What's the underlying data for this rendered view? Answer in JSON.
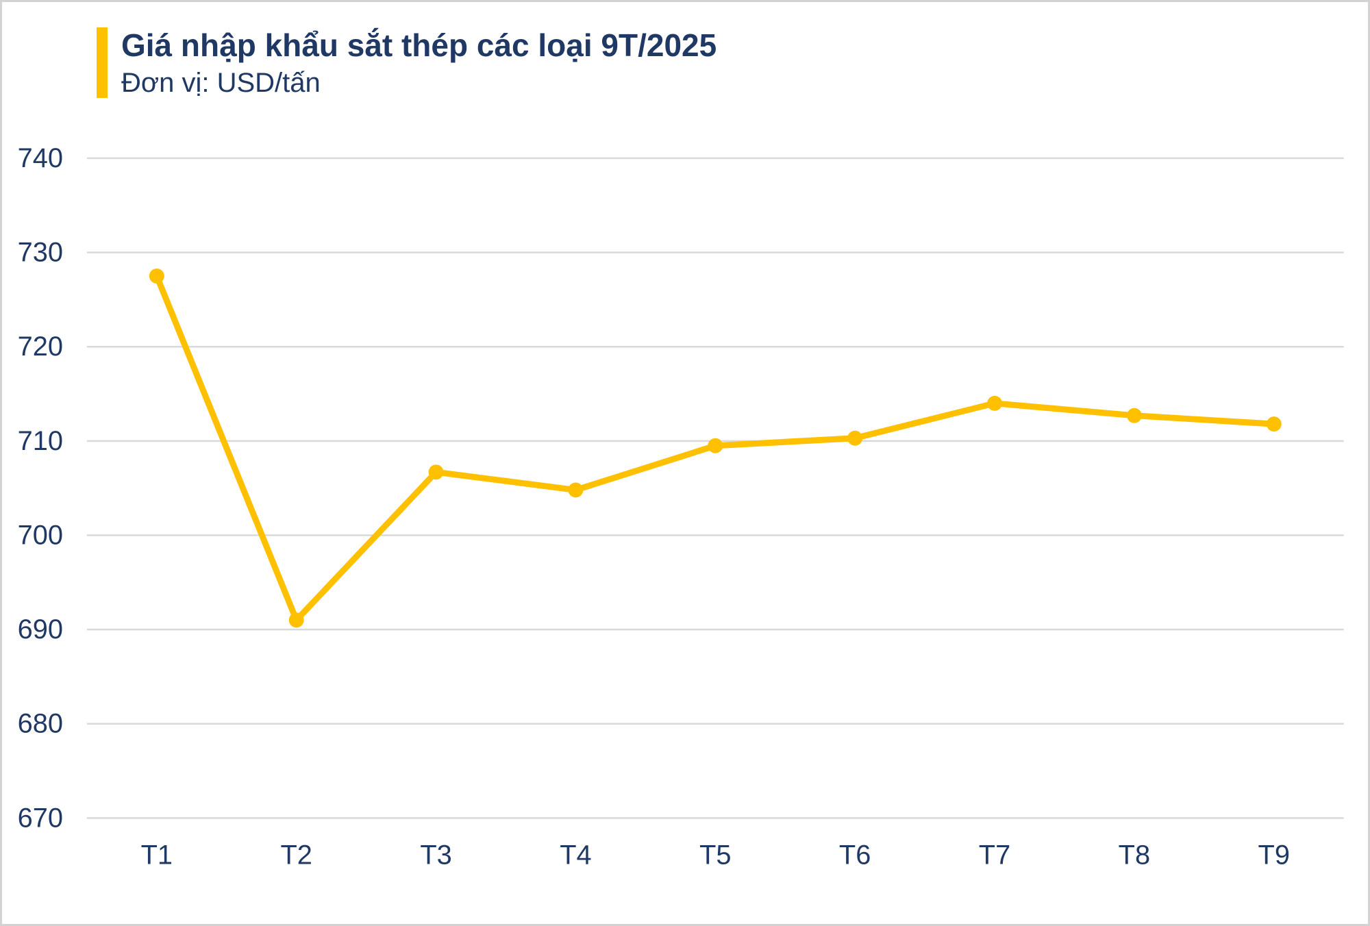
{
  "header": {
    "title": "Giá nhập khẩu sắt thép các loại 9T/2025",
    "subtitle": "Đơn vị: USD/tấn"
  },
  "colors": {
    "accent_gold": "#FFC000",
    "text_navy": "#1F3864",
    "gridline_gray": "#D9D9D9",
    "frame_border_gray": "#D3D3D3",
    "background": "#FFFFFF"
  },
  "chart_data": {
    "type": "line",
    "title": "Giá nhập khẩu sắt thép các loại 9T/2025",
    "subtitle": "Đơn vị: USD/tấn",
    "ylabel_unit": "USD/tấn",
    "categories": [
      "T1",
      "T2",
      "T3",
      "T4",
      "T5",
      "T6",
      "T7",
      "T8",
      "T9"
    ],
    "values": [
      727.5,
      691,
      706.7,
      704.8,
      709.5,
      710.3,
      714,
      712.7,
      711.8
    ],
    "ylim": [
      670,
      740
    ],
    "yticks": [
      740,
      730,
      720,
      710,
      700,
      690,
      680,
      670
    ],
    "grid": "horizontal-only",
    "legend": "none",
    "line_color": "#FFC000",
    "marker": "circle"
  }
}
